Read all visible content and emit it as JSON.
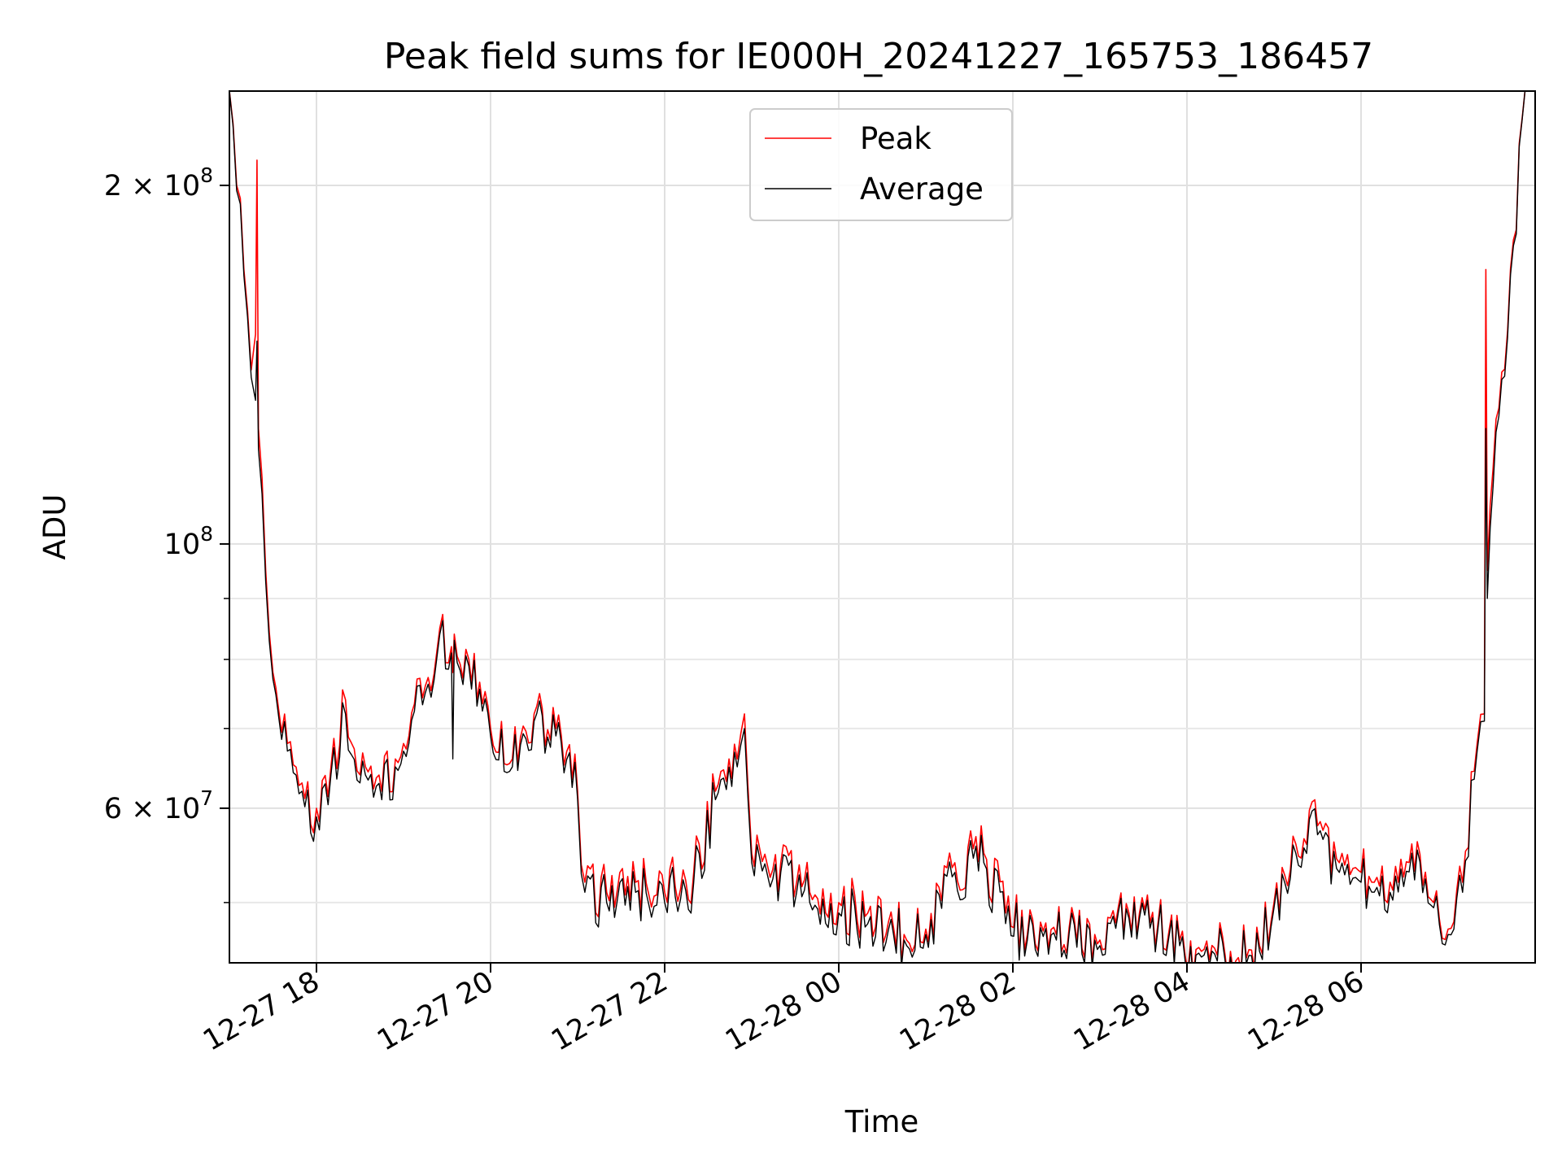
{
  "chart_data": {
    "type": "line",
    "title": "Peak field sums for IE000H_20241227_165753_186457",
    "xlabel": "Time",
    "ylabel": "ADU",
    "y_scale": "log",
    "ylim": [
      44500000,
      240000000
    ],
    "xlim": [
      "2024-12-27 17:00",
      "2024-12-28 08:00"
    ],
    "grid": true,
    "legend_position": "top-center",
    "x_ticks": [
      {
        "t": "2024-12-27 18:00",
        "label": "12-27 18"
      },
      {
        "t": "2024-12-27 20:00",
        "label": "12-27 20"
      },
      {
        "t": "2024-12-27 22:00",
        "label": "12-27 22"
      },
      {
        "t": "2024-12-28 00:00",
        "label": "12-28 00"
      },
      {
        "t": "2024-12-28 02:00",
        "label": "12-28 02"
      },
      {
        "t": "2024-12-28 04:00",
        "label": "12-28 04"
      },
      {
        "t": "2024-12-28 06:00",
        "label": "12-28 06"
      }
    ],
    "y_major_ticks": [
      {
        "value": 60000000,
        "mantissa": "6",
        "exp": "7"
      },
      {
        "value": 100000000,
        "mantissa": "",
        "exp": "8"
      },
      {
        "value": 200000000,
        "mantissa": "2",
        "exp": "8"
      }
    ],
    "y_minor_ticks": [
      50000000,
      70000000,
      80000000,
      90000000
    ],
    "series": [
      {
        "name": "Peak",
        "color": "#ff0000",
        "x": [
          "2024-12-27 17:00",
          "2024-12-27 17:05",
          "2024-12-27 17:10",
          "2024-12-27 17:15",
          "2024-12-27 17:18",
          "2024-12-27 17:19",
          "2024-12-27 17:20",
          "2024-12-27 17:25",
          "2024-12-27 17:30",
          "2024-12-27 17:40",
          "2024-12-27 17:50",
          "2024-12-27 18:00",
          "2024-12-27 18:10",
          "2024-12-27 18:20",
          "2024-12-27 18:30",
          "2024-12-27 18:45",
          "2024-12-27 19:00",
          "2024-12-27 19:15",
          "2024-12-27 19:25",
          "2024-12-27 19:33",
          "2024-12-27 19:34",
          "2024-12-27 19:35",
          "2024-12-27 19:45",
          "2024-12-27 20:00",
          "2024-12-27 20:15",
          "2024-12-27 20:30",
          "2024-12-27 20:45",
          "2024-12-27 21:00",
          "2024-12-27 21:05",
          "2024-12-27 21:20",
          "2024-12-27 21:40",
          "2024-12-27 22:00",
          "2024-12-27 22:20",
          "2024-12-27 22:35",
          "2024-12-27 22:50",
          "2024-12-27 22:55",
          "2024-12-27 23:00",
          "2024-12-27 23:20",
          "2024-12-27 23:40",
          "2024-12-28 00:00",
          "2024-12-28 00:20",
          "2024-12-28 00:45",
          "2024-12-28 01:00",
          "2024-12-28 01:20",
          "2024-12-28 01:40",
          "2024-12-28 01:55",
          "2024-12-28 02:10",
          "2024-12-28 02:30",
          "2024-12-28 03:00",
          "2024-12-28 03:20",
          "2024-12-28 03:40",
          "2024-12-28 03:55",
          "2024-12-28 04:10",
          "2024-12-28 04:30",
          "2024-12-28 04:50",
          "2024-12-28 05:00",
          "2024-12-28 05:15",
          "2024-12-28 05:30",
          "2024-12-28 05:45",
          "2024-12-28 06:00",
          "2024-12-28 06:20",
          "2024-12-28 06:35",
          "2024-12-28 06:50",
          "2024-12-28 07:00",
          "2024-12-28 07:10",
          "2024-12-28 07:20",
          "2024-12-28 07:25",
          "2024-12-28 07:26",
          "2024-12-28 07:27",
          "2024-12-28 07:35",
          "2024-12-28 07:45",
          "2024-12-28 07:53"
        ],
        "y": [
          240000000,
          200000000,
          170000000,
          140000000,
          150000000,
          210000000,
          125000000,
          95000000,
          78000000,
          68000000,
          63000000,
          60000000,
          65000000,
          74000000,
          64000000,
          62000000,
          68000000,
          76000000,
          85000000,
          82000000,
          78000000,
          84000000,
          80000000,
          70000000,
          66000000,
          72000000,
          70000000,
          62000000,
          52000000,
          51000000,
          52000000,
          51000000,
          53000000,
          62000000,
          66000000,
          72000000,
          55000000,
          54000000,
          51000000,
          50000000,
          49000000,
          47000000,
          47500000,
          54000000,
          55000000,
          49000000,
          47000000,
          47000000,
          46500000,
          49000000,
          48000000,
          46500000,
          45500000,
          45500000,
          46000000,
          50000000,
          56000000,
          58000000,
          54000000,
          53000000,
          52000000,
          56000000,
          50000000,
          47500000,
          52000000,
          68000000,
          72000000,
          170000000,
          95000000,
          130000000,
          180000000,
          240000000
        ]
      },
      {
        "name": "Average",
        "color": "#000000",
        "x": [
          "2024-12-27 17:00",
          "2024-12-27 17:05",
          "2024-12-27 17:10",
          "2024-12-27 17:15",
          "2024-12-27 17:18",
          "2024-12-27 17:19",
          "2024-12-27 17:20",
          "2024-12-27 17:25",
          "2024-12-27 17:30",
          "2024-12-27 17:40",
          "2024-12-27 17:50",
          "2024-12-27 18:00",
          "2024-12-27 18:10",
          "2024-12-27 18:20",
          "2024-12-27 18:30",
          "2024-12-27 18:45",
          "2024-12-27 19:00",
          "2024-12-27 19:15",
          "2024-12-27 19:25",
          "2024-12-27 19:33",
          "2024-12-27 19:34",
          "2024-12-27 19:35",
          "2024-12-27 19:45",
          "2024-12-27 20:00",
          "2024-12-27 20:15",
          "2024-12-27 20:30",
          "2024-12-27 20:45",
          "2024-12-27 21:00",
          "2024-12-27 21:05",
          "2024-12-27 21:20",
          "2024-12-27 21:40",
          "2024-12-27 22:00",
          "2024-12-27 22:20",
          "2024-12-27 22:35",
          "2024-12-27 22:50",
          "2024-12-27 22:55",
          "2024-12-27 23:00",
          "2024-12-27 23:20",
          "2024-12-27 23:40",
          "2024-12-28 00:00",
          "2024-12-28 00:20",
          "2024-12-28 00:45",
          "2024-12-28 01:00",
          "2024-12-28 01:20",
          "2024-12-28 01:40",
          "2024-12-28 01:55",
          "2024-12-28 02:10",
          "2024-12-28 02:30",
          "2024-12-28 03:00",
          "2024-12-28 03:20",
          "2024-12-28 03:40",
          "2024-12-28 03:55",
          "2024-12-28 04:10",
          "2024-12-28 04:30",
          "2024-12-28 04:50",
          "2024-12-28 05:00",
          "2024-12-28 05:15",
          "2024-12-28 05:30",
          "2024-12-28 05:45",
          "2024-12-28 06:00",
          "2024-12-28 06:20",
          "2024-12-28 06:35",
          "2024-12-28 06:50",
          "2024-12-28 07:00",
          "2024-12-28 07:10",
          "2024-12-28 07:20",
          "2024-12-28 07:25",
          "2024-12-28 07:26",
          "2024-12-28 07:27",
          "2024-12-28 07:35",
          "2024-12-28 07:45",
          "2024-12-28 07:53"
        ],
        "y": [
          240000000,
          198000000,
          168000000,
          138000000,
          132000000,
          148000000,
          120000000,
          93000000,
          77000000,
          67000000,
          62000000,
          59000000,
          64000000,
          72000000,
          63000000,
          61000000,
          67000000,
          75000000,
          84000000,
          81000000,
          66000000,
          83000000,
          79000000,
          69000000,
          65000000,
          71000000,
          69000000,
          61000000,
          51000000,
          50000000,
          51000000,
          50000000,
          52000000,
          61000000,
          65000000,
          70000000,
          54000000,
          53000000,
          50000000,
          49000000,
          48000000,
          46500000,
          47000000,
          53000000,
          54000000,
          48000000,
          46500000,
          46500000,
          46000000,
          48500000,
          47500000,
          46000000,
          45000000,
          45000000,
          45500000,
          49500000,
          55000000,
          57000000,
          53000000,
          52000000,
          51000000,
          55000000,
          49500000,
          47000000,
          51000000,
          67000000,
          71000000,
          125000000,
          90000000,
          128000000,
          178000000,
          240000000
        ]
      }
    ]
  }
}
